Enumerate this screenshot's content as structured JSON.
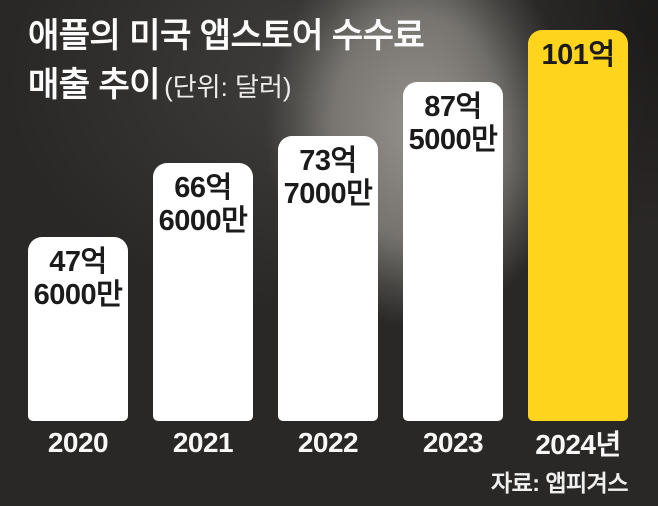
{
  "title": {
    "line1": "애플의 미국 앱스토어 수수료",
    "line2": "매출 추이",
    "unit_note": "(단위: 달러)"
  },
  "source": "자료: 앱피겨스",
  "colors": {
    "background_dark": "#292827",
    "bar_white": "#ffffff",
    "bar_highlight_yellow": "#ffd41d",
    "bar_label_text": "#1b1b1b",
    "light_text": "#f7f7f7"
  },
  "bars": [
    {
      "year": "2020",
      "label_line1": "47억",
      "label_line2": "6000만",
      "value": 47.6,
      "highlighted": false
    },
    {
      "year": "2021",
      "label_line1": "66억",
      "label_line2": "6000만",
      "value": 66.6,
      "highlighted": false
    },
    {
      "year": "2022",
      "label_line1": "73억",
      "label_line2": "7000만",
      "value": 73.7,
      "highlighted": false
    },
    {
      "year": "2023",
      "label_line1": "87억",
      "label_line2": "5000만",
      "value": 87.5,
      "highlighted": false
    },
    {
      "year": "2024년",
      "label_line1": "101억",
      "value": 101,
      "highlighted": true
    }
  ],
  "chart_data": {
    "type": "bar",
    "title": "애플의 미국 앱스토어 수수료 매출 추이",
    "unit_note": "(단위: 달러)",
    "categories": [
      "2020",
      "2021",
      "2022",
      "2023",
      "2024년"
    ],
    "values": [
      47.6,
      66.6,
      73.7,
      87.5,
      101
    ],
    "value_unit": "억 달러",
    "value_labels": [
      "47억 6000만",
      "66억 6000만",
      "73억 7000만",
      "87억 5000만",
      "101억"
    ],
    "ylim": [
      0,
      101
    ],
    "grid": false,
    "legend": "none",
    "highlight_category": "2024년",
    "source": "자료: 앱피겨스"
  }
}
